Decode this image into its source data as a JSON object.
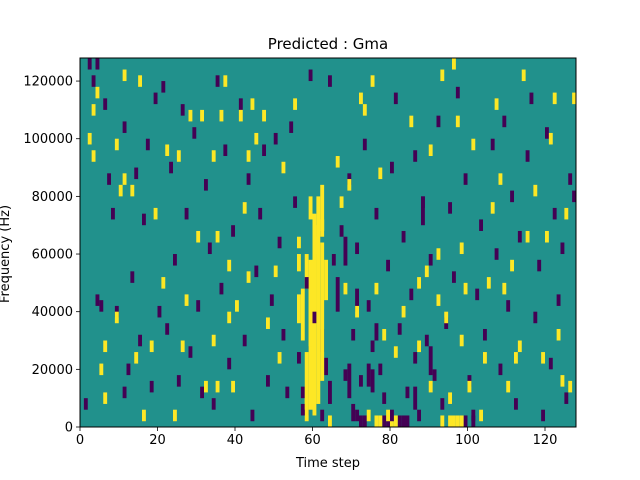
{
  "chart_data": {
    "type": "heatmap",
    "title": "Predicted : Gma",
    "xlabel": "Time step",
    "ylabel": "Frequency (Hz)",
    "xlim": [
      0,
      128
    ],
    "ylim": [
      0,
      128000
    ],
    "x_ticks": [
      0,
      20,
      40,
      60,
      80,
      100,
      120
    ],
    "x_tick_labels": [
      "0",
      "20",
      "40",
      "60",
      "80",
      "100",
      "120"
    ],
    "y_ticks": [
      0,
      20000,
      40000,
      60000,
      80000,
      100000,
      120000
    ],
    "y_tick_labels": [
      "0",
      "20000",
      "40000",
      "60000",
      "80000",
      "100000",
      "120000"
    ],
    "grid": false,
    "legend": "none",
    "colors": {
      "low": "#440154",
      "mid": "#21918c",
      "high": "#fde725",
      "frame": "#000000"
    },
    "background_value": 0,
    "value_levels": [
      -1,
      0,
      1
    ],
    "cell_width": 1,
    "cell_height": 2000,
    "high_cells": [
      [
        2,
        98000
      ],
      [
        3,
        92000
      ],
      [
        3,
        108000
      ],
      [
        4,
        114000
      ],
      [
        5,
        18000
      ],
      [
        6,
        8000
      ],
      [
        6,
        26000
      ],
      [
        9,
        36000
      ],
      [
        9,
        96000
      ],
      [
        10,
        80000
      ],
      [
        11,
        120000
      ],
      [
        11,
        84000
      ],
      [
        13,
        80000
      ],
      [
        14,
        22000
      ],
      [
        15,
        118000
      ],
      [
        16,
        2000
      ],
      [
        18,
        26000
      ],
      [
        19,
        72000
      ],
      [
        21,
        48000
      ],
      [
        22,
        94000
      ],
      [
        24,
        2000
      ],
      [
        25,
        92000
      ],
      [
        26,
        26000
      ],
      [
        27,
        42000
      ],
      [
        28,
        106000
      ],
      [
        30,
        64000
      ],
      [
        31,
        106000
      ],
      [
        32,
        12000
      ],
      [
        34,
        28000
      ],
      [
        34,
        92000
      ],
      [
        35,
        12000
      ],
      [
        35,
        64000
      ],
      [
        36,
        106000
      ],
      [
        37,
        118000
      ],
      [
        38,
        36000
      ],
      [
        38,
        54000
      ],
      [
        39,
        12000
      ],
      [
        40,
        40000
      ],
      [
        41,
        106000
      ],
      [
        42,
        74000
      ],
      [
        43,
        50000
      ],
      [
        43,
        92000
      ],
      [
        44,
        110000
      ],
      [
        45,
        98000
      ],
      [
        47,
        106000
      ],
      [
        48,
        34000
      ],
      [
        50,
        52000
      ],
      [
        51,
        22000
      ],
      [
        52,
        88000
      ],
      [
        55,
        110000
      ],
      [
        56,
        62000
      ],
      [
        58,
        6000
      ],
      [
        62,
        68000
      ],
      [
        66,
        90000
      ],
      [
        67,
        76000
      ],
      [
        68,
        46000
      ],
      [
        69,
        82000
      ],
      [
        71,
        38000
      ],
      [
        72,
        112000
      ],
      [
        73,
        108000
      ],
      [
        74,
        2000
      ],
      [
        75,
        118000
      ],
      [
        76,
        46000
      ],
      [
        77,
        86000
      ],
      [
        78,
        30000
      ],
      [
        79,
        2000
      ],
      [
        81,
        24000
      ],
      [
        83,
        38000
      ],
      [
        85,
        104000
      ],
      [
        87,
        26000
      ],
      [
        87,
        48000
      ],
      [
        89,
        52000
      ],
      [
        90,
        12000
      ],
      [
        90,
        94000
      ],
      [
        92,
        42000
      ],
      [
        92,
        58000
      ],
      [
        93,
        120000
      ],
      [
        94,
        36000
      ],
      [
        95,
        8000
      ],
      [
        96,
        124000
      ],
      [
        97,
        104000
      ],
      [
        98,
        28000
      ],
      [
        98,
        60000
      ],
      [
        99,
        46000
      ],
      [
        100,
        12000
      ],
      [
        101,
        96000
      ],
      [
        103,
        2000
      ],
      [
        104,
        22000
      ],
      [
        105,
        48000
      ],
      [
        106,
        74000
      ],
      [
        107,
        110000
      ],
      [
        108,
        84000
      ],
      [
        109,
        46000
      ],
      [
        110,
        12000
      ],
      [
        111,
        54000
      ],
      [
        112,
        22000
      ],
      [
        113,
        26000
      ],
      [
        114,
        120000
      ],
      [
        115,
        64000
      ],
      [
        117,
        80000
      ],
      [
        119,
        22000
      ],
      [
        120,
        64000
      ],
      [
        121,
        98000
      ],
      [
        122,
        112000
      ],
      [
        123,
        30000
      ],
      [
        124,
        14000
      ],
      [
        125,
        72000
      ],
      [
        126,
        12000
      ],
      [
        127,
        112000
      ]
    ],
    "low_cells": [
      [
        1,
        6000
      ],
      [
        2,
        124000
      ],
      [
        3,
        118000
      ],
      [
        4,
        42000
      ],
      [
        4,
        124000
      ],
      [
        5,
        40000
      ],
      [
        6,
        110000
      ],
      [
        7,
        84000
      ],
      [
        8,
        72000
      ],
      [
        9,
        38000
      ],
      [
        11,
        10000
      ],
      [
        11,
        102000
      ],
      [
        12,
        18000
      ],
      [
        13,
        50000
      ],
      [
        14,
        86000
      ],
      [
        15,
        28000
      ],
      [
        16,
        70000
      ],
      [
        17,
        96000
      ],
      [
        18,
        12000
      ],
      [
        19,
        112000
      ],
      [
        20,
        38000
      ],
      [
        21,
        116000
      ],
      [
        22,
        32000
      ],
      [
        23,
        88000
      ],
      [
        24,
        56000
      ],
      [
        25,
        14000
      ],
      [
        26,
        108000
      ],
      [
        27,
        72000
      ],
      [
        28,
        24000
      ],
      [
        29,
        100000
      ],
      [
        30,
        40000
      ],
      [
        31,
        10000
      ],
      [
        32,
        82000
      ],
      [
        33,
        60000
      ],
      [
        34,
        6000
      ],
      [
        35,
        118000
      ],
      [
        36,
        46000
      ],
      [
        37,
        94000
      ],
      [
        38,
        20000
      ],
      [
        39,
        66000
      ],
      [
        41,
        110000
      ],
      [
        42,
        28000
      ],
      [
        43,
        84000
      ],
      [
        44,
        2000
      ],
      [
        45,
        52000
      ],
      [
        46,
        72000
      ],
      [
        47,
        94000
      ],
      [
        48,
        14000
      ],
      [
        49,
        42000
      ],
      [
        50,
        98000
      ],
      [
        51,
        62000
      ],
      [
        52,
        30000
      ],
      [
        53,
        10000
      ],
      [
        54,
        102000
      ],
      [
        55,
        76000
      ],
      [
        56,
        22000
      ],
      [
        57,
        4000
      ],
      [
        58,
        48000
      ],
      [
        59,
        120000
      ],
      [
        60,
        36000
      ],
      [
        62,
        2000
      ],
      [
        64,
        118000
      ],
      [
        65,
        56000
      ],
      [
        67,
        66000
      ],
      [
        68,
        16000
      ],
      [
        69,
        84000
      ],
      [
        70,
        30000
      ],
      [
        71,
        2000
      ],
      [
        71,
        60000
      ],
      [
        72,
        14000
      ],
      [
        73,
        96000
      ],
      [
        74,
        40000
      ],
      [
        75,
        26000
      ],
      [
        76,
        72000
      ],
      [
        77,
        18000
      ],
      [
        78,
        8000
      ],
      [
        79,
        54000
      ],
      [
        80,
        88000
      ],
      [
        80,
        2000
      ],
      [
        81,
        112000
      ],
      [
        82,
        32000
      ],
      [
        83,
        64000
      ],
      [
        84,
        10000
      ],
      [
        85,
        44000
      ],
      [
        86,
        92000
      ],
      [
        86,
        22000
      ],
      [
        87,
        2000
      ],
      [
        88,
        76000
      ],
      [
        89,
        28000
      ],
      [
        90,
        56000
      ],
      [
        91,
        16000
      ],
      [
        92,
        104000
      ],
      [
        93,
        6000
      ],
      [
        94,
        34000
      ],
      [
        95,
        74000
      ],
      [
        96,
        50000
      ],
      [
        97,
        114000
      ],
      [
        99,
        84000
      ],
      [
        100,
        14000
      ],
      [
        101,
        2000
      ],
      [
        102,
        44000
      ],
      [
        103,
        68000
      ],
      [
        104,
        30000
      ],
      [
        106,
        96000
      ],
      [
        107,
        58000
      ],
      [
        108,
        18000
      ],
      [
        109,
        104000
      ],
      [
        110,
        40000
      ],
      [
        111,
        78000
      ],
      [
        112,
        6000
      ],
      [
        113,
        64000
      ],
      [
        115,
        92000
      ],
      [
        116,
        112000
      ],
      [
        117,
        36000
      ],
      [
        118,
        54000
      ],
      [
        119,
        2000
      ],
      [
        120,
        100000
      ],
      [
        121,
        20000
      ],
      [
        122,
        72000
      ],
      [
        123,
        42000
      ],
      [
        124,
        60000
      ],
      [
        125,
        8000
      ],
      [
        126,
        84000
      ],
      [
        127,
        78000
      ]
    ],
    "high_bands": [
      {
        "x": 58,
        "y": [
          2000,
          26000
        ]
      },
      {
        "x": 59,
        "y": [
          6000,
          58000
        ]
      },
      {
        "x": 59,
        "y": [
          28000,
          52000
        ]
      },
      {
        "x": 60,
        "y": [
          4000,
          70000
        ]
      },
      {
        "x": 60,
        "y": [
          36000,
          66000
        ]
      },
      {
        "x": 61,
        "y": [
          8000,
          80000
        ]
      },
      {
        "x": 62,
        "y": [
          16000,
          64000
        ]
      },
      {
        "x": 57,
        "y": [
          30000,
          48000
        ]
      },
      {
        "x": 56,
        "y": [
          36000,
          46000
        ]
      },
      {
        "x": 59,
        "y": [
          72000,
          80000
        ]
      },
      {
        "x": 60,
        "y": [
          60000,
          74000
        ]
      },
      {
        "x": 58,
        "y": [
          48000,
          60000
        ]
      },
      {
        "x": 63,
        "y": [
          44000,
          58000
        ]
      },
      {
        "x": 62,
        "y": [
          66000,
          84000
        ]
      },
      {
        "x": 64,
        "y": [
          0,
          4000
        ]
      },
      {
        "x": 56,
        "y": [
          54000,
          60000
        ]
      },
      {
        "x": 80,
        "y": [
          0,
          4000
        ]
      },
      {
        "x": 81,
        "y": [
          0,
          4000
        ]
      },
      {
        "x": 96,
        "y": [
          0,
          4000
        ]
      },
      {
        "x": 97,
        "y": [
          0,
          4000
        ]
      },
      {
        "x": 98,
        "y": [
          0,
          4000
        ]
      },
      {
        "x": 76,
        "y": [
          0,
          4000
        ]
      },
      {
        "x": 77,
        "y": [
          0,
          4000
        ]
      },
      {
        "x": 93,
        "y": [
          0,
          4000
        ]
      },
      {
        "x": 95,
        "y": [
          0,
          4000
        ]
      }
    ],
    "low_bands": [
      {
        "x": 62,
        "y": [
          26000,
          34000
        ]
      },
      {
        "x": 63,
        "y": [
          18000,
          24000
        ]
      },
      {
        "x": 64,
        "y": [
          8000,
          16000
        ]
      },
      {
        "x": 66,
        "y": [
          40000,
          52000
        ]
      },
      {
        "x": 68,
        "y": [
          56000,
          66000
        ]
      },
      {
        "x": 69,
        "y": [
          10000,
          22000
        ]
      },
      {
        "x": 70,
        "y": [
          2000,
          8000
        ]
      },
      {
        "x": 72,
        "y": [
          0,
          4000
        ]
      },
      {
        "x": 73,
        "y": [
          0,
          4000
        ]
      },
      {
        "x": 78,
        "y": [
          0,
          4000
        ]
      },
      {
        "x": 79,
        "y": [
          0,
          4000
        ]
      },
      {
        "x": 82,
        "y": [
          0,
          4000
        ]
      },
      {
        "x": 83,
        "y": [
          0,
          4000
        ]
      },
      {
        "x": 84,
        "y": [
          0,
          4000
        ]
      },
      {
        "x": 74,
        "y": [
          14000,
          22000
        ]
      },
      {
        "x": 75,
        "y": [
          12000,
          20000
        ]
      },
      {
        "x": 76,
        "y": [
          30000,
          36000
        ]
      },
      {
        "x": 86,
        "y": [
          6000,
          14000
        ]
      },
      {
        "x": 88,
        "y": [
          70000,
          80000
        ]
      },
      {
        "x": 90,
        "y": [
          18000,
          28000
        ]
      },
      {
        "x": 58,
        "y": [
          4000,
          8000
        ]
      },
      {
        "x": 57,
        "y": [
          10000,
          14000
        ]
      },
      {
        "x": 71,
        "y": [
          40000,
          48000
        ]
      },
      {
        "x": 99,
        "y": [
          0,
          4000
        ]
      },
      {
        "x": 101,
        "y": [
          0,
          4000
        ]
      }
    ]
  }
}
